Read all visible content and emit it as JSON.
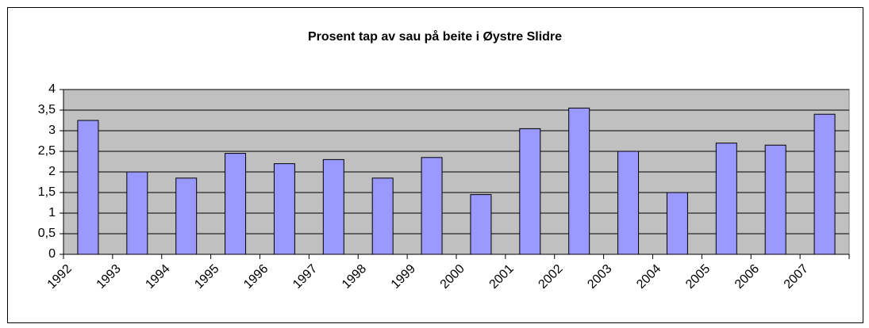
{
  "chart_data": {
    "type": "bar",
    "title": "Prosent tap av sau på beite i Øystre Slidre",
    "categories": [
      "1992",
      "1993",
      "1994",
      "1995",
      "1996",
      "1997",
      "1998",
      "1999",
      "2000",
      "2001",
      "2002",
      "2003",
      "2004",
      "2005",
      "2006",
      "2007"
    ],
    "values": [
      3.25,
      2.0,
      1.85,
      2.45,
      2.2,
      2.3,
      1.85,
      2.35,
      1.45,
      3.05,
      3.55,
      2.5,
      1.5,
      2.7,
      2.65,
      3.4
    ],
    "color": "#9999ff",
    "ylim": [
      0,
      4
    ],
    "yticks": [
      0,
      {
        "value": 0.5,
        "label": "0,5"
      },
      1,
      {
        "value": 1.5,
        "label": "1,5"
      },
      2,
      {
        "value": 2.5,
        "label": "2,5"
      },
      3,
      {
        "value": 3.5,
        "label": "3,5"
      },
      4
    ],
    "grid": true
  }
}
